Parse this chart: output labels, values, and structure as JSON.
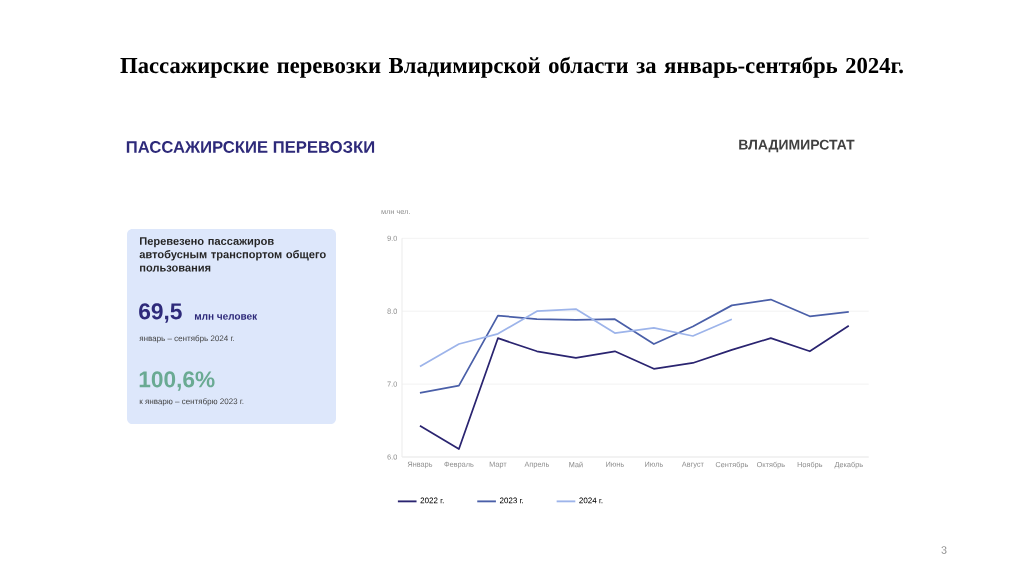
{
  "chart_data": {
    "type": "line",
    "title": "Пассажирские перевозки Владимирской области за январь-сентябрь 2024г.",
    "subtitle": "ПАССАЖИРСКИЕ ПЕРЕВОЗКИ",
    "ylabel": "млн чел.",
    "annotations": [
      "ВЛАДИМИРСТАТ",
      "Перевезено пассажиров автобусным транспортом общего пользования",
      "69,5",
      "млн человек",
      "январь – сентябрь 2024 г.",
      "100,6%",
      "к январю – сентябрю 2023 г.",
      "3"
    ],
    "categories": [
      "Январь",
      "Февраль",
      "Март",
      "Апрель",
      "Май",
      "Июнь",
      "Июль",
      "Август",
      "Сентябрь",
      "Октябрь",
      "Ноябрь",
      "Декабрь"
    ],
    "series": [
      {
        "name": "2022 г.",
        "color": "#2a2470",
        "values": [
          6.43,
          6.11,
          7.63,
          7.45,
          7.36,
          7.45,
          7.21,
          7.29,
          7.47,
          7.63,
          7.45,
          7.8
        ]
      },
      {
        "name": "2023 г.",
        "color": "#4a5fa8",
        "values": [
          6.88,
          6.98,
          7.94,
          7.89,
          7.88,
          7.89,
          7.55,
          7.79,
          8.08,
          8.16,
          7.93,
          7.99
        ]
      },
      {
        "name": "2024 г.",
        "color": "#9db4ea",
        "values": [
          7.24,
          7.55,
          7.69,
          8.0,
          8.03,
          7.7,
          7.77,
          7.66,
          7.89,
          null,
          null,
          null
        ]
      }
    ],
    "ylim": [
      6,
      9
    ],
    "yticks": [
      {
        "value": 6,
        "label": "6.0"
      },
      {
        "value": 7,
        "label": "7.0"
      },
      {
        "value": 8,
        "label": "8.0"
      },
      {
        "value": 9,
        "label": "9.0"
      }
    ],
    "grid": "y",
    "legend": "bottom",
    "marker": "none",
    "line_style": "solid"
  }
}
